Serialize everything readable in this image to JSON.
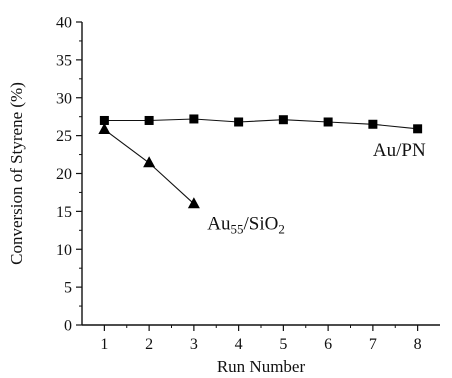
{
  "chart_data": {
    "type": "line",
    "title": "",
    "xlabel": "Run Number",
    "ylabel": "Conversion of Styrene (%)",
    "xlim": [
      0.5,
      8.5
    ],
    "ylim": [
      0,
      40
    ],
    "x_ticks": [
      1,
      2,
      3,
      4,
      5,
      6,
      7,
      8
    ],
    "y_ticks": [
      0,
      5,
      10,
      15,
      20,
      25,
      30,
      35,
      40
    ],
    "grid": false,
    "legend": "none",
    "series": [
      {
        "marker": "square",
        "x": [
          1,
          2,
          3,
          4,
          5,
          6,
          7,
          8
        ],
        "y": [
          27.0,
          27.0,
          27.2,
          26.8,
          27.1,
          26.8,
          26.5,
          25.9
        ]
      },
      {
        "marker": "triangle",
        "x": [
          1,
          2,
          3
        ],
        "y": [
          25.8,
          21.4,
          16.0
        ]
      }
    ],
    "annotations": [
      {
        "series": 0,
        "text": "Au/PN",
        "at_x": 7.0,
        "at_y": 22.3
      },
      {
        "series": 1,
        "parts": [
          "Au",
          "55",
          "/SiO",
          "2"
        ],
        "at_x": 3.3,
        "at_y": 12.6
      }
    ]
  }
}
